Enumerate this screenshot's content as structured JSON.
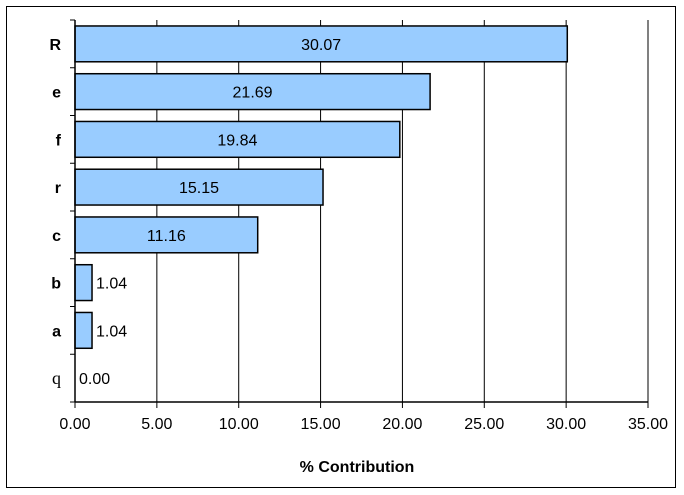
{
  "chart_data": {
    "type": "bar",
    "orientation": "horizontal",
    "categories": [
      "R",
      "e",
      "f",
      "r",
      "c",
      "b",
      "a",
      "q"
    ],
    "values": [
      30.07,
      21.69,
      19.84,
      15.15,
      11.16,
      1.04,
      1.04,
      0.0
    ],
    "data_labels": [
      "30.07",
      "21.69",
      "19.84",
      "15.15",
      "11.16",
      "1.04",
      "1.04",
      "0.00"
    ],
    "xlabel": "% Contribution",
    "ylabel": "",
    "title": "",
    "xlim": [
      0,
      35
    ],
    "xticks": [
      "0.00",
      "5.00",
      "10.00",
      "15.00",
      "20.00",
      "25.00",
      "30.00",
      "35.00"
    ],
    "grid": "vertical",
    "legend": "none",
    "colors": {
      "bar_fill": "#99CCFF",
      "bar_stroke": "#000000",
      "grid": "#000000"
    }
  }
}
